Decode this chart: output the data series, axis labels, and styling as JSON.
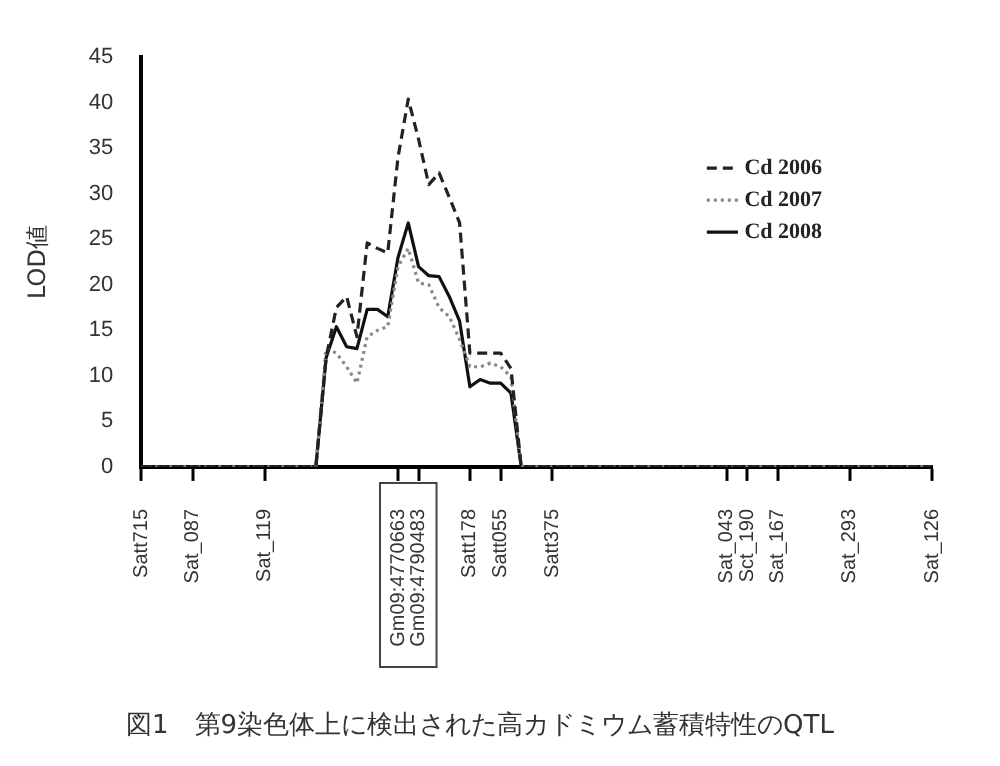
{
  "chart_data": {
    "type": "line",
    "title": "図1　第9染色体上に検出された高カドミウム蓄積特性のQTL",
    "ylabel": "LOD値",
    "categories": [
      "Satt715",
      null,
      null,
      null,
      null,
      "Sat_087",
      null,
      null,
      null,
      null,
      null,
      null,
      "Sat_119",
      null,
      null,
      null,
      null,
      null,
      null,
      null,
      null,
      null,
      null,
      null,
      null,
      "Gm09:4770663",
      null,
      "Gm09:4790483",
      null,
      null,
      null,
      null,
      "Satt178",
      null,
      null,
      "Satt055",
      null,
      null,
      null,
      null,
      "Satt375",
      null,
      null,
      null,
      null,
      null,
      null,
      null,
      null,
      null,
      null,
      null,
      null,
      null,
      null,
      null,
      null,
      "Sat_043",
      null,
      "Sct_190",
      null,
      null,
      "Sat_167",
      null,
      null,
      null,
      null,
      null,
      null,
      "Sat_293",
      null,
      null,
      null,
      null,
      null,
      null,
      null,
      "Sat_126"
    ],
    "ylim": [
      0,
      45
    ],
    "yticks": [
      0,
      5,
      10,
      15,
      20,
      25,
      30,
      35,
      40,
      45
    ],
    "legend": "top right",
    "grid": false,
    "marker": "none",
    "series": [
      {
        "name": "Cd 2006",
        "color": "#222222",
        "line_style": "dashed",
        "values": [
          0,
          0,
          0,
          0,
          0,
          0,
          0,
          0,
          0,
          0,
          0,
          0,
          0,
          0,
          0,
          0,
          0,
          0,
          12,
          17.5,
          18.7,
          14.3,
          24.6,
          24,
          23.5,
          34,
          40.4,
          36,
          31,
          32.3,
          29.6,
          26.8,
          12.5,
          12.5,
          12.5,
          12.5,
          10.8,
          0,
          0,
          0,
          0,
          0,
          0,
          0,
          0,
          0,
          0,
          0,
          0,
          0,
          0,
          0,
          0,
          0,
          0,
          0,
          0,
          0,
          0,
          0,
          0,
          0,
          0,
          0,
          0,
          0,
          0,
          0,
          0,
          0,
          0,
          0,
          0,
          0,
          0,
          0,
          0,
          0
        ]
      },
      {
        "name": "Cd 2007",
        "color": "#888888",
        "line_style": "dotted",
        "values": [
          0,
          0,
          0,
          0,
          0,
          0,
          0,
          0,
          0,
          0,
          0,
          0,
          0,
          0,
          0,
          0,
          0,
          0,
          13,
          12.5,
          11,
          9.2,
          14.3,
          15,
          15.4,
          22,
          24,
          20.2,
          20,
          17.5,
          16.5,
          14,
          11,
          11,
          11.4,
          11,
          9.9,
          0,
          0,
          0,
          0,
          0,
          0,
          0,
          0,
          0,
          0,
          0,
          0,
          0,
          0,
          0,
          0,
          0,
          0,
          0,
          0,
          0,
          0,
          0,
          0,
          0,
          0,
          0,
          0,
          0,
          0,
          0,
          0,
          0,
          0,
          0,
          0,
          0,
          0,
          0,
          0,
          0
        ]
      },
      {
        "name": "Cd 2008",
        "color": "#111111",
        "line_style": "solid",
        "values": [
          0,
          0,
          0,
          0,
          0,
          0,
          0,
          0,
          0,
          0,
          0,
          0,
          0,
          0,
          0,
          0,
          0,
          0,
          12,
          15.4,
          13.2,
          13,
          17.3,
          17.3,
          16.5,
          23,
          26.8,
          22,
          21,
          20.9,
          18.7,
          16,
          8.8,
          9.6,
          9.2,
          9.2,
          8.1,
          0,
          0,
          0,
          0,
          0,
          0,
          0,
          0,
          0,
          0,
          0,
          0,
          0,
          0,
          0,
          0,
          0,
          0,
          0,
          0,
          0,
          0,
          0,
          0,
          0,
          0,
          0,
          0,
          0,
          0,
          0,
          0,
          0,
          0,
          0,
          0,
          0,
          0,
          0,
          0,
          0
        ]
      }
    ]
  }
}
